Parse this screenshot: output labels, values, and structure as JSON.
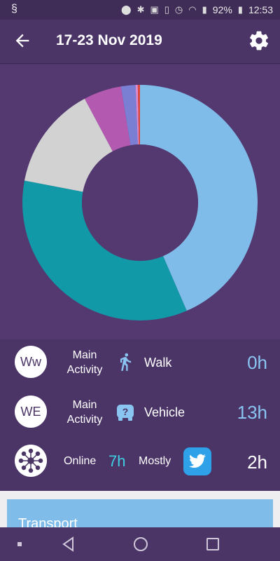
{
  "status_bar": {
    "battery": "92%",
    "time": "12:53"
  },
  "header": {
    "title": "17-23 Nov 2019"
  },
  "colors": {
    "background": "#4b3567",
    "chart_bg": "#53396f",
    "accent_blue": "#8ac4f0",
    "accent_cyan": "#3ecfe3",
    "twitter": "#2ea1e9"
  },
  "chart_data": {
    "type": "pie",
    "style": "donut",
    "slices": [
      {
        "value": 43.5,
        "color": "#7fbce9"
      },
      {
        "value": 34.5,
        "color": "#1199a8"
      },
      {
        "value": 14.2,
        "color": "#d2d2d2"
      },
      {
        "value": 5.2,
        "color": "#b35ab0"
      },
      {
        "value": 2.0,
        "color": "#7a7fd4"
      },
      {
        "value": 0.3,
        "color": "#d98ccf"
      },
      {
        "value": 0.3,
        "color": "#e0453a"
      }
    ]
  },
  "stats": {
    "weekday": {
      "badge": "Ww",
      "label_line1": "Main",
      "label_line2": "Activity",
      "activity_icon": "walk-icon",
      "activity": "Walk",
      "value": "0h"
    },
    "weekend": {
      "badge": "WE",
      "label_line1": "Main",
      "label_line2": "Activity",
      "activity_icon": "vehicle-icon",
      "activity": "Vehicle",
      "value": "13h"
    },
    "online": {
      "badge_icon": "network-icon",
      "label": "Online",
      "value": "7h",
      "mostly_label": "Mostly",
      "app_icon": "twitter-icon",
      "app_value": "2h"
    }
  },
  "bottom_card": {
    "title": "Transport"
  }
}
